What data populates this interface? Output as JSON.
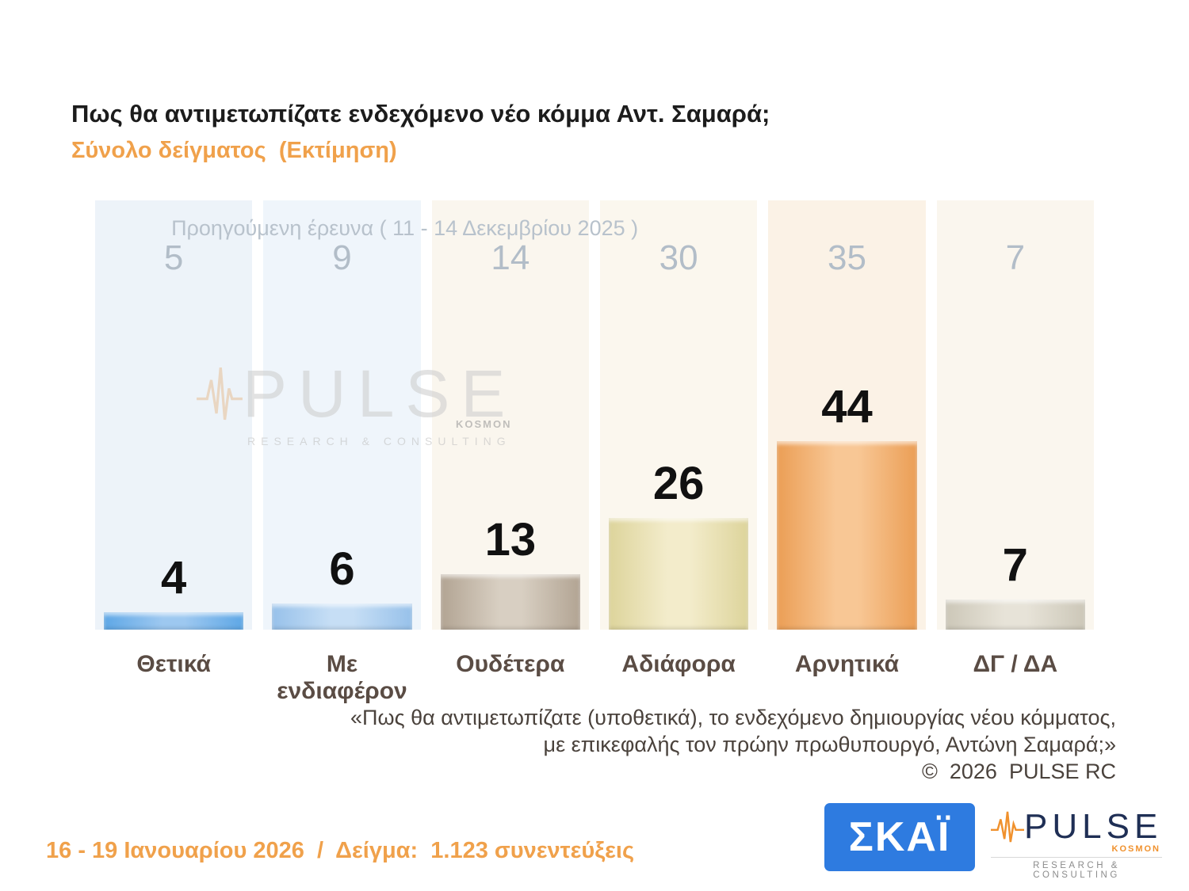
{
  "header": {
    "title": "Πως θα αντιμετωπίζατε ενδεχόμενο νέο κόμμα Αντ. Σαμαρά;",
    "subtitle": "Σύνολο δείγματος  (Εκτίμηση)"
  },
  "chart_data": {
    "type": "bar",
    "title": "Πως θα αντιμετωπίζατε ενδεχόμενο νέο κόμμα Αντ. Σαμαρά;",
    "subtitle": "Σύνολο δείγματος (Εκτίμηση)",
    "categories": [
      "Θετικά",
      "Με ενδιαφέρον",
      "Ουδέτερα",
      "Αδιάφορα",
      "Αρνητικά",
      "ΔΓ / ΔΑ"
    ],
    "series": [
      {
        "name": "Προηγούμενη έρευνα ( 11 - 14 Δεκεμβρίου 2025 )",
        "values": [
          5,
          9,
          14,
          30,
          35,
          7
        ]
      },
      {
        "name": "Εκτίμηση",
        "values": [
          4,
          6,
          13,
          26,
          44,
          7
        ]
      }
    ],
    "ylim": [
      0,
      100
    ],
    "grid": false,
    "legend": "none",
    "value_labels": true,
    "bar_colors": [
      {
        "edge": "#5ea7e6",
        "center": "#9dc8f0"
      },
      {
        "edge": "#97c1ea",
        "center": "#c6def5"
      },
      {
        "edge": "#b2a493",
        "center": "#d8cfc2"
      },
      {
        "edge": "#ddd49b",
        "center": "#f3eccb"
      },
      {
        "edge": "#eb9e55",
        "center": "#f8c795"
      },
      {
        "edge": "#ccc7b8",
        "center": "#e7e3d8"
      }
    ],
    "column_backgrounds": [
      "#edf3f9",
      "#eff5fb",
      "#faf6ee",
      "#fbf7ee",
      "#fbf2e6",
      "#faf6ee"
    ]
  },
  "watermark": {
    "name": "PULSE",
    "kosmon": "KOSMON",
    "sub": "RESEARCH & CONSULTING"
  },
  "footnote": {
    "line1": "«Πως θα αντιμετωπίζατε (υποθετικά), το ενδεχόμενο δημιουργίας νέου κόμματος,",
    "line2": "με επικεφαλής τον πρώην πρωθυπουργό, Αντώνη Σαμαρά;»",
    "copyright": "©  2026  PULSE RC"
  },
  "footer": {
    "survey_info": "16 - 19 Ιανουαρίου 2026  /  Δείγμα:  1.123 συνεντεύξεις",
    "skai_text": "ΣΚΑΪ",
    "pulse": {
      "name": "PULSE",
      "kosmon": "KOSMON",
      "sub": "RESEARCH & CONSULTING"
    }
  }
}
